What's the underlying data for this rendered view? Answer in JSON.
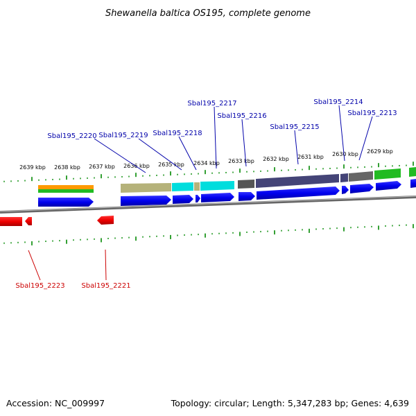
{
  "title": "Shewanella baltica OS195, complete genome",
  "footer": {
    "accession": "Accession: NC_009997",
    "summary": "Topology: circular; Length: 5,347,283 bp; Genes: 4,639"
  },
  "kbp_labels": [
    "2639 kbp",
    "2638 kbp",
    "2637 kbp",
    "2636 kbp",
    "2635 kbp",
    "2634 kbp",
    "2633 kbp",
    "2632 kbp",
    "2631 kbp",
    "2630 kbp",
    "2629 kbp"
  ],
  "genes_forward": [
    "Sbal195_2220",
    "Sbal195_2219",
    "Sbal195_2218",
    "Sbal195_2217",
    "Sbal195_2216",
    "Sbal195_2215",
    "Sbal195_2214",
    "Sbal195_2213"
  ],
  "genes_reverse": [
    "Sbal195_2223",
    "Sbal195_2221"
  ],
  "colors": {
    "forward_label": "#0000aa",
    "reverse_label": "#cc0000",
    "gene_blue": "#0000ee",
    "gene_red": "#ee0000",
    "tick_green": "#008800",
    "backbone": "#777777",
    "orange": "#ff9900",
    "olive": "#b5b27a",
    "cyan": "#00dddd",
    "gray_dark": "#555555",
    "slate": "#444477",
    "green": "#22bb22"
  }
}
